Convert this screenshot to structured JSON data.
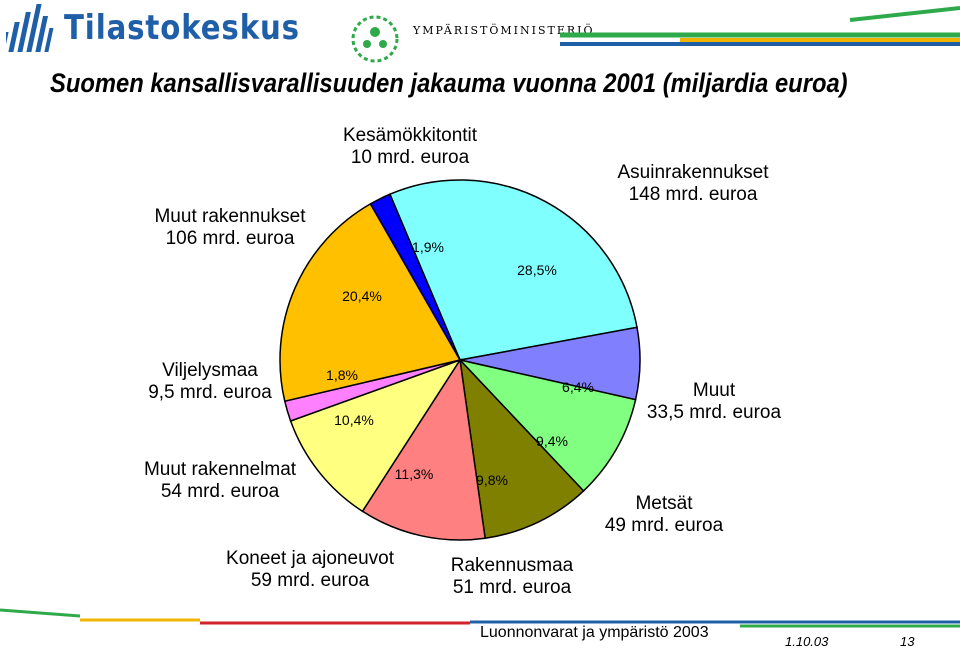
{
  "header": {
    "brand": "Tilastokeskus",
    "ministry": "YMPÄRISTÖMINISTERIÖ",
    "stripe_colors": [
      "#2eaa4a",
      "#1f5fa8",
      "#f0b400",
      "#2eaa4a"
    ]
  },
  "chart_data": {
    "type": "pie",
    "title": "Suomen kansallisvarallisuuden jakauma vuonna 2001 (miljardia euroa)",
    "slices": [
      {
        "label_line1": "Asuinrakennukset",
        "label_line2": "148 mrd. euroa",
        "value": 148,
        "percent": "28,5%",
        "color": "#80ffff"
      },
      {
        "label_line1": "Muut",
        "label_line2": "33,5 mrd. euroa",
        "value": 33.5,
        "percent": "6,4%",
        "color": "#8080ff"
      },
      {
        "label_line1": "Metsät",
        "label_line2": "49 mrd. euroa",
        "value": 49,
        "percent": "9,4%",
        "color": "#80ff80"
      },
      {
        "label_line1": "Rakennusmaa",
        "label_line2": "51 mrd. euroa",
        "value": 51,
        "percent": "9,8%",
        "color": "#808000"
      },
      {
        "label_line1": "Koneet ja ajoneuvot",
        "label_line2": "59 mrd. euroa",
        "value": 59,
        "percent": "11,3%",
        "color": "#ff8080"
      },
      {
        "label_line1": "Muut rakennelmat",
        "label_line2": "54 mrd. euroa",
        "value": 54,
        "percent": "10,4%",
        "color": "#ffff80"
      },
      {
        "label_line1": "Viljelysmaa",
        "label_line2": "9,5 mrd. euroa",
        "value": 9.5,
        "percent": "1,8%",
        "color": "#ff80ff"
      },
      {
        "label_line1": "Muut rakennukset",
        "label_line2": "106 mrd. euroa",
        "value": 106,
        "percent": "20,4%",
        "color": "#ffc000"
      },
      {
        "label_line1": "Kesämökkitontit",
        "label_line2": "10 mrd. euroa",
        "value": 10,
        "percent": "1,9%",
        "color": "#0000ff"
      }
    ]
  },
  "footer": {
    "source": "Luonnonvarat ja ympäristö 2003",
    "date": "1.10.03",
    "page": "13",
    "stripe_colors": [
      "#2eaa4a",
      "#f0b400",
      "#d2232a",
      "#1f5fa8",
      "#2eaa4a"
    ]
  }
}
